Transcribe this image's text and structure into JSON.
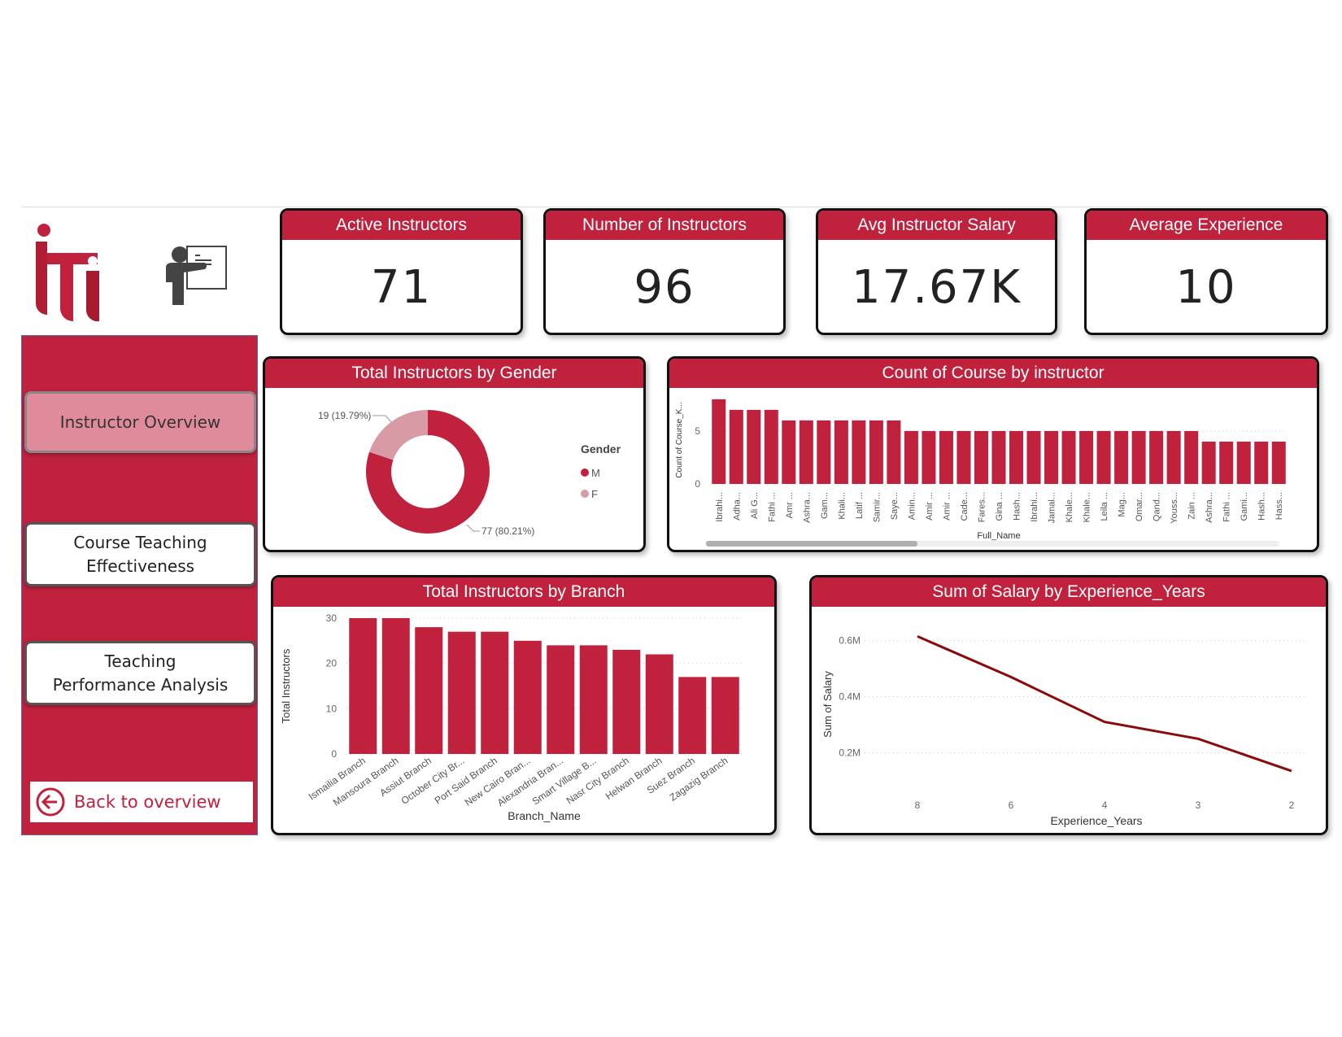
{
  "colors": {
    "accent": "#c0213d",
    "accent_light": "#d89ba6",
    "line": "#8b0a0a",
    "active_nav": "#df8b9c"
  },
  "logo": {
    "text": "iti"
  },
  "nav": {
    "items": [
      {
        "label": "Instructor Overview",
        "active": true
      },
      {
        "label": "Course Teaching Effectiveness",
        "active": false
      },
      {
        "label": "Teaching Performance Analysis",
        "active": false
      }
    ],
    "back_label": "Back to overview",
    "back_icon": "arrow-left-circle-icon"
  },
  "kpis": [
    {
      "title": "Active Instructors",
      "value": "71"
    },
    {
      "title": "Number of Instructors",
      "value": "96"
    },
    {
      "title": "Avg Instructor Salary",
      "value": "17.67K"
    },
    {
      "title": "Average Experience",
      "value": "10"
    }
  ],
  "chart_data": [
    {
      "type": "pie",
      "donut": true,
      "title": "Total Instructors by Gender",
      "legend_title": "Gender",
      "legend_position": "right",
      "slices": [
        {
          "name": "M",
          "value": 77,
          "label": "77 (80.21%)",
          "color": "#c0213d"
        },
        {
          "name": "F",
          "value": 19,
          "label": "19 (19.79%)",
          "color": "#d89ba6"
        }
      ]
    },
    {
      "type": "bar",
      "title": "Count of Course by instructor",
      "xlabel": "Full_Name",
      "ylabel": "Count of Course_K...",
      "ylim": [
        0,
        8.3
      ],
      "yticks": [
        0,
        5
      ],
      "grid": true,
      "scrollbar": true,
      "categories": [
        "Ibrahi...",
        "Adha...",
        "Ali G...",
        "Fathi ...",
        "Amr ...",
        "Ashra...",
        "Gam...",
        "Khali...",
        "Latif ...",
        "Samir...",
        "Saye...",
        "Amin...",
        "Amir ...",
        "Amir ...",
        "Cade...",
        "Fares...",
        "Gina ...",
        "Hash...",
        "Ibrahi...",
        "Jamal...",
        "Khale...",
        "Khale...",
        "Leila ...",
        "Mag...",
        "Omar...",
        "Qand...",
        "Youss...",
        "Zain ...",
        "Ashra...",
        "Fathi ...",
        "Gami...",
        "Hash...",
        "Hass..."
      ],
      "values": [
        8,
        7,
        7,
        7,
        6,
        6,
        6,
        6,
        6,
        6,
        6,
        5,
        5,
        5,
        5,
        5,
        5,
        5,
        5,
        5,
        5,
        5,
        5,
        5,
        5,
        5,
        5,
        5,
        4,
        4,
        4,
        4,
        4
      ]
    },
    {
      "type": "bar",
      "title": "Total Instructors by Branch",
      "xlabel": "Branch_Name",
      "ylabel": "Total Instructors",
      "ylim": [
        0,
        30
      ],
      "yticks": [
        0,
        10,
        20,
        30
      ],
      "grid": true,
      "categories": [
        "Ismailia Branch",
        "Mansoura Branch",
        "Assiut Branch",
        "October City Br...",
        "Port Said Branch",
        "New Cairo Bran...",
        "Alexandria Bran...",
        "Smart Village B...",
        "Nasr City Branch",
        "Helwan Branch",
        "Suez Branch",
        "Zagazig Branch"
      ],
      "values": [
        30,
        30,
        28,
        27,
        27,
        25,
        24,
        24,
        23,
        22,
        17,
        17
      ]
    },
    {
      "type": "line",
      "title": "Sum of Salary by Experience_Years",
      "xlabel": "Experience_Years",
      "ylabel": "Sum of Salary",
      "ylim": [
        0.1,
        0.68
      ],
      "yticks": [
        0.2,
        0.4,
        0.6
      ],
      "ytick_labels": [
        "0.2M",
        "0.4M",
        "0.6M"
      ],
      "grid": true,
      "x": [
        "8",
        "6",
        "4",
        "3",
        "2"
      ],
      "values": [
        0.615,
        0.47,
        0.31,
        0.25,
        0.135
      ]
    }
  ]
}
